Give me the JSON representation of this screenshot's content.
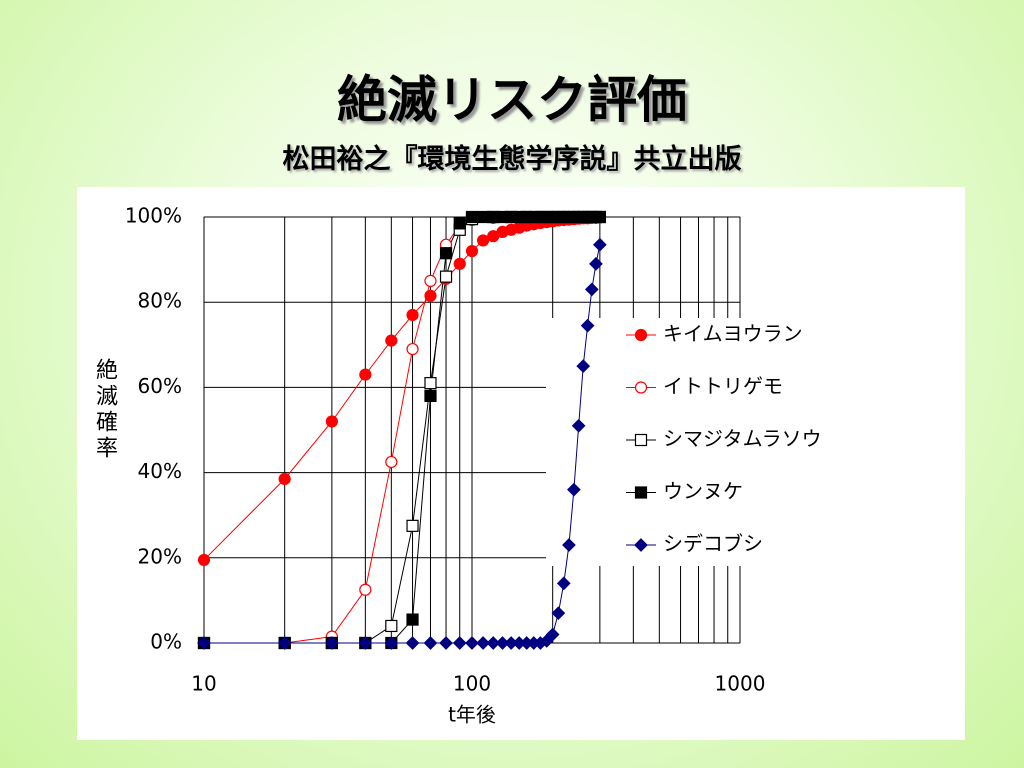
{
  "chart_data": {
    "type": "line",
    "title": "絶滅リスク評価",
    "subtitle": "松田裕之『環境生態学序説』共立出版",
    "x_label": "t年後",
    "y_label": "絶滅確率",
    "x_scale": "log",
    "xlim": [
      10,
      1000
    ],
    "xticks": [
      10,
      100,
      1000
    ],
    "xminorticks": [
      20,
      30,
      40,
      50,
      60,
      70,
      80,
      90,
      200,
      300,
      400,
      500,
      600,
      700,
      800,
      900
    ],
    "ylim": [
      0,
      100
    ],
    "yticks": [
      {
        "value": 0,
        "label": "0%"
      },
      {
        "value": 20,
        "label": "20%"
      },
      {
        "value": 40,
        "label": "40%"
      },
      {
        "value": 60,
        "label": "60%"
      },
      {
        "value": 80,
        "label": "80%"
      },
      {
        "value": 100,
        "label": "100%"
      }
    ],
    "grid": true,
    "legend": "right",
    "series": [
      {
        "name": "キイムヨウラン",
        "color": "#ff0000",
        "marker": "circle",
        "marker_fill": "#ff0000",
        "x": [
          10,
          20,
          30,
          40,
          50,
          60,
          70,
          80,
          90,
          100,
          110,
          120,
          130,
          140,
          150,
          160,
          170,
          180,
          190,
          200,
          210,
          220,
          230,
          240,
          250,
          260,
          270,
          280,
          290,
          300
        ],
        "values": [
          19.5,
          38.5,
          52,
          63,
          71,
          77,
          81.5,
          85.5,
          89,
          92,
          94.5,
          95.5,
          96.5,
          97,
          97.5,
          98,
          98.3,
          98.6,
          98.8,
          99,
          99.2,
          99.3,
          99.4,
          99.5,
          99.6,
          99.7,
          99.7,
          99.8,
          99.8,
          99.9
        ]
      },
      {
        "name": "イトトリゲモ",
        "color": "#ff0000",
        "marker": "circle",
        "marker_fill": "#ffffff",
        "x": [
          10,
          20,
          30,
          40,
          50,
          60,
          70,
          80,
          90,
          100,
          120,
          140,
          160,
          180,
          200,
          220,
          240,
          260,
          280,
          300
        ],
        "values": [
          0,
          0,
          1.5,
          12.5,
          42.5,
          69,
          85,
          93.5,
          98,
          99.3,
          99.8,
          100,
          100,
          100,
          100,
          100,
          100,
          100,
          100,
          100
        ]
      },
      {
        "name": "シマジタムラソウ",
        "color": "#000000",
        "marker": "square",
        "marker_fill": "#ffffff",
        "x": [
          10,
          20,
          30,
          40,
          50,
          60,
          70,
          80,
          90,
          100,
          120,
          140,
          160,
          180,
          200,
          220,
          240,
          260,
          280,
          300
        ],
        "values": [
          0,
          0,
          0,
          0,
          4,
          27.5,
          61,
          86,
          97,
          99.5,
          100,
          100,
          100,
          100,
          100,
          100,
          100,
          100,
          100,
          100
        ]
      },
      {
        "name": "ウンヌケ",
        "color": "#000000",
        "marker": "square",
        "marker_fill": "#000000",
        "x": [
          10,
          20,
          30,
          40,
          50,
          60,
          70,
          80,
          90,
          100,
          110,
          120,
          130,
          140,
          150,
          160,
          170,
          180,
          190,
          200,
          210,
          220,
          230,
          240,
          250,
          260,
          270,
          280,
          290,
          300
        ],
        "values": [
          0,
          0,
          0,
          0,
          0,
          5.5,
          58,
          91.5,
          98.5,
          100,
          100,
          100,
          100,
          100,
          100,
          100,
          100,
          100,
          100,
          100,
          100,
          100,
          100,
          100,
          100,
          100,
          100,
          100,
          100,
          100
        ]
      },
      {
        "name": "シデコブシ",
        "color": "#000080",
        "marker": "diamond",
        "marker_fill": "#000080",
        "x": [
          10,
          20,
          30,
          40,
          50,
          60,
          70,
          80,
          90,
          100,
          110,
          120,
          130,
          140,
          150,
          160,
          170,
          180,
          190,
          200,
          210,
          220,
          230,
          240,
          250,
          260,
          270,
          280,
          290,
          300
        ],
        "values": [
          0,
          0,
          0,
          0,
          0,
          0,
          0,
          0,
          0,
          0,
          0,
          0,
          0,
          0,
          0,
          0,
          0,
          0,
          0.5,
          2,
          7,
          14,
          23,
          36,
          51,
          65,
          74.5,
          83,
          89,
          93.5
        ]
      }
    ]
  }
}
